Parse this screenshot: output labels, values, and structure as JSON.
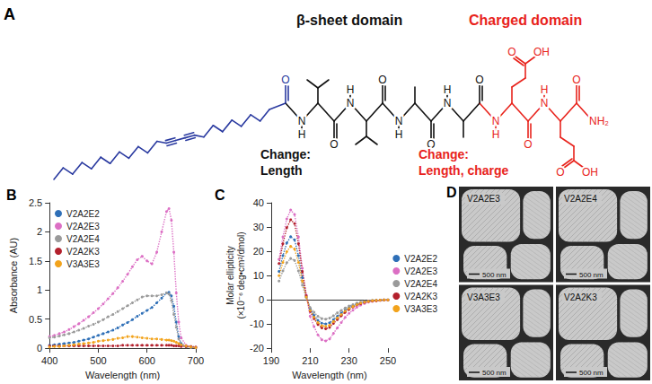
{
  "panel_a": {
    "letter": "A",
    "domains": [
      {
        "text": "β-sheet domain",
        "color": "#111111"
      },
      {
        "text": "Charged domain",
        "color": "#e8231c"
      }
    ],
    "changes": [
      {
        "lines": [
          "Change:",
          "Length"
        ],
        "color": "#111111"
      },
      {
        "lines": [
          "Change:",
          "Length, charge"
        ],
        "color": "#e8231c"
      }
    ],
    "atoms": {
      "oxygen": "O",
      "nitrogen": "N",
      "hydrogen": "H",
      "hydroxyl": "OH",
      "amide": "NH₂"
    }
  },
  "chart_data": [
    {
      "type": "line",
      "panel": "B",
      "marker": "circle",
      "line_style": "dotted",
      "grid": false,
      "legend": "upper left",
      "x_label": "Wavelength (nm)",
      "y_label": "Absorbance (AU)",
      "xlim": [
        400,
        700
      ],
      "xticks": [
        400,
        500,
        600,
        700
      ],
      "ylim": [
        0,
        2.5
      ],
      "yticks": [
        0,
        0.5,
        1,
        1.5,
        2,
        2.5
      ],
      "x": [
        400,
        410,
        420,
        430,
        440,
        450,
        460,
        470,
        480,
        490,
        500,
        510,
        520,
        530,
        540,
        550,
        560,
        570,
        580,
        590,
        600,
        610,
        620,
        630,
        640,
        645,
        650,
        655,
        660,
        665,
        670,
        680,
        690,
        700
      ],
      "series": [
        {
          "name": "V2A2E2",
          "color": "#2e6fb7",
          "values": [
            0.05,
            0.06,
            0.07,
            0.08,
            0.09,
            0.1,
            0.12,
            0.14,
            0.16,
            0.19,
            0.22,
            0.25,
            0.28,
            0.31,
            0.35,
            0.4,
            0.44,
            0.49,
            0.55,
            0.6,
            0.65,
            0.7,
            0.78,
            0.86,
            0.95,
            0.96,
            0.9,
            0.72,
            0.45,
            0.2,
            0.08,
            0.03,
            0.02,
            0.01
          ]
        },
        {
          "name": "V2A2E3",
          "color": "#dc6fc4",
          "values": [
            0.2,
            0.22,
            0.25,
            0.28,
            0.32,
            0.37,
            0.42,
            0.48,
            0.54,
            0.61,
            0.68,
            0.76,
            0.85,
            0.94,
            1.04,
            1.15,
            1.27,
            1.4,
            1.52,
            1.58,
            1.5,
            1.45,
            1.65,
            2.0,
            2.35,
            2.4,
            2.2,
            1.65,
            0.95,
            0.45,
            0.18,
            0.05,
            0.02,
            0.01
          ]
        },
        {
          "name": "V2A2E4",
          "color": "#9a9a9a",
          "values": [
            0.18,
            0.19,
            0.21,
            0.23,
            0.25,
            0.28,
            0.31,
            0.34,
            0.38,
            0.41,
            0.45,
            0.49,
            0.54,
            0.58,
            0.63,
            0.68,
            0.73,
            0.78,
            0.83,
            0.88,
            0.9,
            0.9,
            0.9,
            0.92,
            0.95,
            0.93,
            0.82,
            0.58,
            0.36,
            0.16,
            0.06,
            0.02,
            0.01,
            0.01
          ]
        },
        {
          "name": "V2A2K3",
          "color": "#b3202c",
          "values": [
            0.04,
            0.04,
            0.04,
            0.04,
            0.04,
            0.04,
            0.04,
            0.04,
            0.04,
            0.04,
            0.04,
            0.04,
            0.04,
            0.04,
            0.04,
            0.05,
            0.05,
            0.05,
            0.05,
            0.05,
            0.05,
            0.05,
            0.05,
            0.05,
            0.05,
            0.05,
            0.05,
            0.04,
            0.04,
            0.04,
            0.03,
            0.03,
            0.03,
            0.02
          ]
        },
        {
          "name": "V3A3E3",
          "color": "#f2a31c",
          "values": [
            0.02,
            0.03,
            0.03,
            0.04,
            0.05,
            0.06,
            0.07,
            0.08,
            0.09,
            0.1,
            0.12,
            0.13,
            0.14,
            0.15,
            0.17,
            0.18,
            0.2,
            0.2,
            0.19,
            0.18,
            0.17,
            0.16,
            0.16,
            0.15,
            0.14,
            0.14,
            0.13,
            0.12,
            0.1,
            0.08,
            0.06,
            0.04,
            0.02,
            0.01
          ]
        }
      ]
    },
    {
      "type": "line",
      "panel": "C",
      "marker": "circle",
      "line_style": "dotted",
      "grid": false,
      "legend": "right",
      "x_label": "Wavelength (nm)",
      "y_label": "Molar ellipticity (×10⁻⁶ deg•cm²/dmol)",
      "xlim": [
        190,
        250
      ],
      "xticks": [
        190,
        210,
        230,
        250
      ],
      "ylim": [
        -20,
        40
      ],
      "yticks": [
        -20,
        -10,
        0,
        10,
        20,
        30,
        40
      ],
      "x": [
        194,
        196,
        198,
        200,
        202,
        204,
        206,
        208,
        210,
        212,
        214,
        216,
        218,
        220,
        222,
        224,
        226,
        228,
        230,
        232,
        234,
        236,
        238,
        240,
        242,
        244,
        246,
        248,
        250
      ],
      "series": [
        {
          "name": "V2A2E2",
          "color": "#2e6fb7",
          "values": [
            11.7,
            18.2,
            23.4,
            26,
            24.7,
            18.2,
            9.1,
            1.3,
            -4,
            -6.5,
            -8.5,
            -9.7,
            -10,
            -9.5,
            -8.2,
            -6.8,
            -5.5,
            -4.3,
            -3.3,
            -2.5,
            -1.8,
            -1.3,
            -0.9,
            -0.6,
            -0.4,
            -0.3,
            -0.2,
            -0.1,
            -0.1
          ]
        },
        {
          "name": "V2A2E3",
          "color": "#dc6fc4",
          "values": [
            16.7,
            25.9,
            33.3,
            37,
            35.2,
            25.9,
            13,
            1.9,
            -6.8,
            -11.1,
            -14.5,
            -16.5,
            -17,
            -16.2,
            -13.9,
            -11.6,
            -9.4,
            -7.3,
            -5.6,
            -4.3,
            -3.1,
            -2.2,
            -1.5,
            -1,
            -0.7,
            -0.5,
            -0.3,
            -0.2,
            -0.2
          ]
        },
        {
          "name": "V2A2E4",
          "color": "#9a9a9a",
          "values": [
            7.7,
            11.9,
            15.3,
            17,
            16.2,
            11.9,
            6,
            0.9,
            -3.2,
            -5.2,
            -6.8,
            -7.8,
            -8,
            -7.6,
            -6.6,
            -5.4,
            -4.4,
            -3.4,
            -2.6,
            -2,
            -1.4,
            -1,
            -0.7,
            -0.5,
            -0.3,
            -0.2,
            -0.2,
            -0.1,
            -0.1
          ]
        },
        {
          "name": "V2A2K3",
          "color": "#b3202c",
          "values": [
            14.9,
            23.1,
            29.7,
            33,
            31.4,
            23.1,
            11.6,
            1.7,
            -4.8,
            -7.8,
            -10.2,
            -11.6,
            -12,
            -11.4,
            -9.8,
            -8.2,
            -6.6,
            -5.2,
            -4,
            -3,
            -2.2,
            -1.6,
            -1.1,
            -0.7,
            -0.5,
            -0.4,
            -0.2,
            -0.1,
            -0.1
          ]
        },
        {
          "name": "V3A3E3",
          "color": "#f2a31c",
          "values": [
            9.9,
            15.4,
            19.8,
            22,
            20.9,
            15.4,
            7.7,
            1.1,
            -4.4,
            -7.2,
            -9.4,
            -10.7,
            -11,
            -10.5,
            -9,
            -7.5,
            -6.1,
            -4.7,
            -3.6,
            -2.8,
            -2,
            -1.4,
            -1,
            -0.7,
            -0.4,
            -0.3,
            -0.2,
            -0.1,
            -0.1
          ]
        }
      ]
    }
  ],
  "panel_d": {
    "letter": "D",
    "images": [
      {
        "label": "V2A2E3",
        "scale_bar": "500 nm"
      },
      {
        "label": "V2A2E4",
        "scale_bar": "500 nm"
      },
      {
        "label": "V3A3E3",
        "scale_bar": "500 nm"
      },
      {
        "label": "V2A2K3",
        "scale_bar": "500 nm"
      }
    ]
  }
}
